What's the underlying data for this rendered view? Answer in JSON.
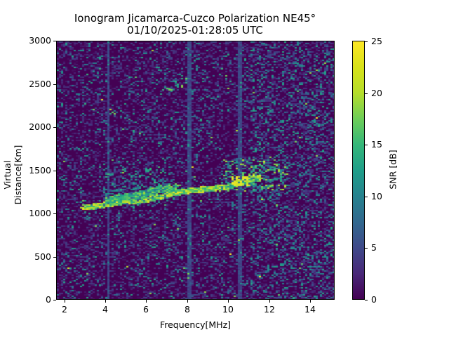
{
  "figure": {
    "title_line1": "Ionogram Jicamarca-Cuzco Polarization NE45°",
    "title_line2": "01/10/2025-01:28:05 UTC",
    "xlabel": "Frequency[MHz]",
    "ylabel": "Virtual Distance[Km]",
    "colorbar_label": "SNR [dB]",
    "x_ticks": [
      "2",
      "4",
      "6",
      "8",
      "10",
      "12",
      "14"
    ],
    "y_ticks": [
      "0",
      "500",
      "1000",
      "1500",
      "2000",
      "2500",
      "3000"
    ],
    "colorbar_ticks": [
      "0",
      "5",
      "10",
      "15",
      "20",
      "25"
    ]
  },
  "chart_data": {
    "type": "heatmap",
    "title": "Ionogram Jicamarca-Cuzco Polarization NE45°\n01/10/2025-01:28:05 UTC",
    "xlabel": "Frequency[MHz]",
    "ylabel": "Virtual Distance[Km]",
    "colorbar_label": "SNR [dB]",
    "colormap": "viridis",
    "xlim": [
      1.6,
      15.2
    ],
    "ylim": [
      0,
      3000
    ],
    "clim": [
      0,
      25
    ],
    "x_ticks": [
      2,
      4,
      6,
      8,
      10,
      12,
      14
    ],
    "y_ticks": [
      0,
      500,
      1000,
      1500,
      2000,
      2500,
      3000
    ],
    "colorbar_ticks": [
      0,
      5,
      10,
      15,
      20,
      25
    ],
    "grid": false,
    "background_snr": "0-5 dB noise",
    "traces": [
      {
        "name": "lower trace (strong echo)",
        "snr_db": 25,
        "points": [
          [
            2.8,
            1080
          ],
          [
            3.5,
            1100
          ],
          [
            4.0,
            1120
          ],
          [
            4.5,
            1135
          ],
          [
            5.0,
            1150
          ],
          [
            5.5,
            1160
          ],
          [
            6.0,
            1175
          ],
          [
            6.5,
            1200
          ],
          [
            7.0,
            1230
          ],
          [
            7.5,
            1260
          ],
          [
            8.0,
            1280
          ],
          [
            8.5,
            1290
          ],
          [
            9.0,
            1300
          ],
          [
            9.5,
            1310
          ],
          [
            10.0,
            1330
          ],
          [
            10.5,
            1370
          ],
          [
            11.0,
            1400
          ],
          [
            11.5,
            1440
          ]
        ]
      },
      {
        "name": "upper trace",
        "snr_db": 20,
        "points": [
          [
            4.0,
            1170
          ],
          [
            4.5,
            1190
          ],
          [
            5.0,
            1200
          ],
          [
            5.5,
            1220
          ],
          [
            6.0,
            1260
          ],
          [
            6.5,
            1290
          ],
          [
            7.0,
            1310
          ],
          [
            7.5,
            1310
          ]
        ]
      },
      {
        "name": "scatter cloud",
        "snr_db": 15,
        "points": [
          [
            10.0,
            1500
          ],
          [
            10.5,
            1550
          ],
          [
            11.0,
            1500
          ],
          [
            12.5,
            1450
          ]
        ]
      },
      {
        "name": "faint high-range echoes",
        "snr_db": 12,
        "points": [
          [
            4.2,
            2190
          ],
          [
            7.0,
            2460
          ],
          [
            7.5,
            2500
          ],
          [
            8.0,
            2550
          ]
        ]
      }
    ]
  }
}
